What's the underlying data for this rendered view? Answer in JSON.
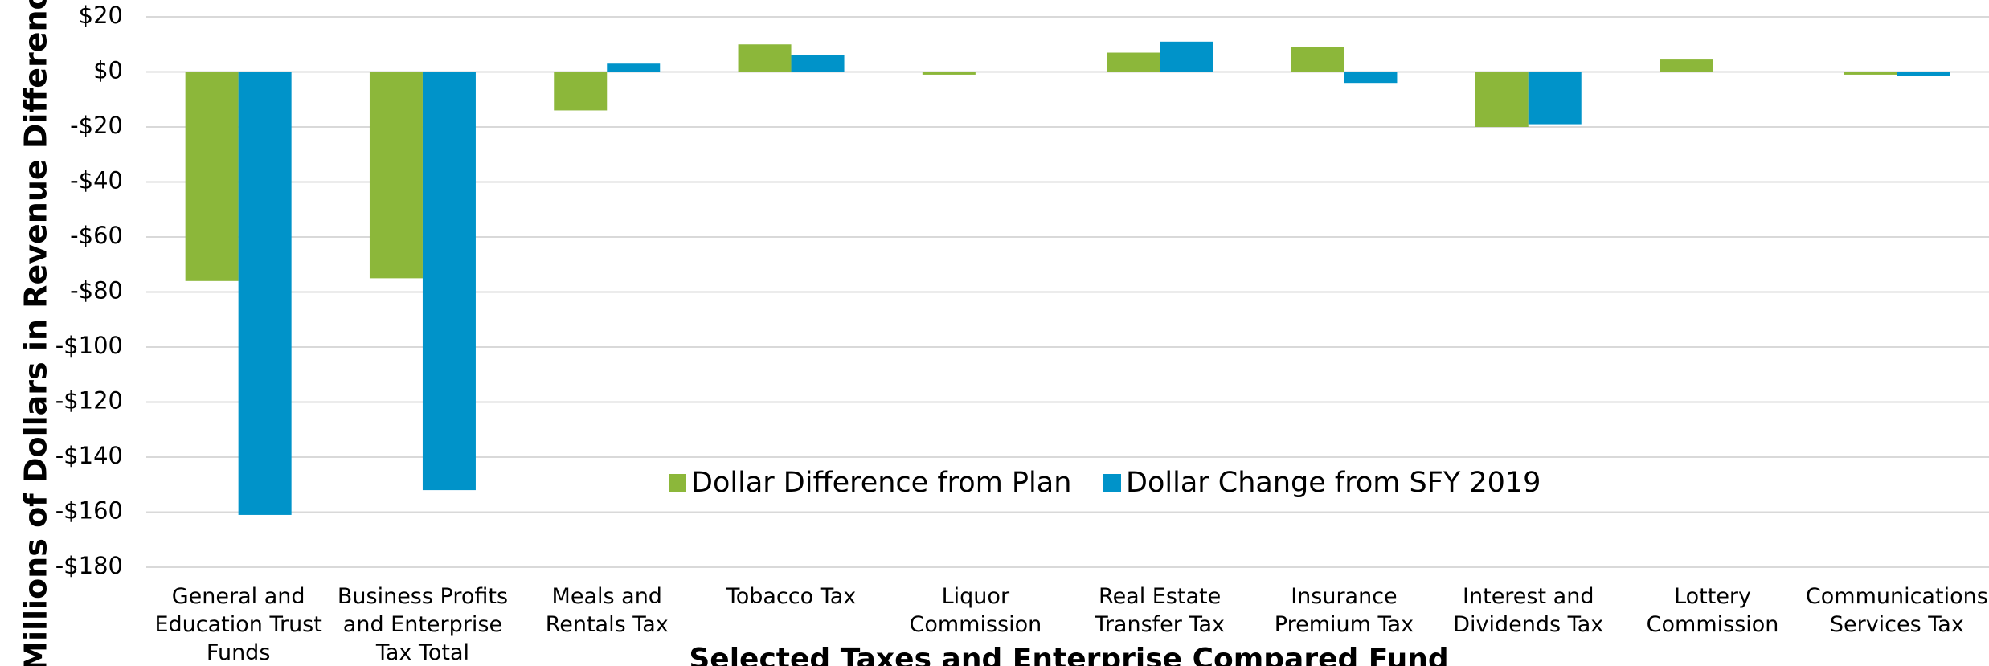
{
  "chart_data": {
    "type": "bar",
    "y_axis_label": "Millions of Dollars in Revenue Difference",
    "x_axis_label": "Selected Taxes and Enterprise Compared Fund",
    "categories": [
      "General and\nEducation Trust\nFunds",
      "Business Profits\nand Enterprise\nTax Total",
      "Meals and\nRentals Tax",
      "Tobacco Tax",
      "Liquor\nCommission",
      "Real Estate\nTransfer Tax",
      "Insurance\nPremium Tax",
      "Interest and\nDividends Tax",
      "Lottery\nCommission",
      "Communications\nServices Tax"
    ],
    "series": [
      {
        "name": "Dollar Difference from Plan",
        "color": "#8cb73a",
        "values": [
          -76,
          -75,
          -14,
          10,
          -1,
          7,
          9,
          -20,
          4.5,
          -1
        ]
      },
      {
        "name": "Dollar Change from SFY 2019",
        "color": "#0093c9",
        "values": [
          -161,
          -152,
          3,
          6,
          0,
          11,
          -4,
          -19,
          0,
          -1.5
        ]
      }
    ],
    "ylim": [
      -180,
      20
    ],
    "yticks": [
      {
        "value": 20,
        "label": "$20"
      },
      {
        "value": 0,
        "label": "$0"
      },
      {
        "value": -20,
        "label": "-$20"
      },
      {
        "value": -40,
        "label": "-$40"
      },
      {
        "value": -60,
        "label": "-$60"
      },
      {
        "value": -80,
        "label": "-$80"
      },
      {
        "value": -100,
        "label": "-$100"
      },
      {
        "value": -120,
        "label": "-$120"
      },
      {
        "value": -140,
        "label": "-$140"
      },
      {
        "value": -160,
        "label": "-$160"
      },
      {
        "value": -180,
        "label": "-$180"
      }
    ],
    "grid": true
  }
}
